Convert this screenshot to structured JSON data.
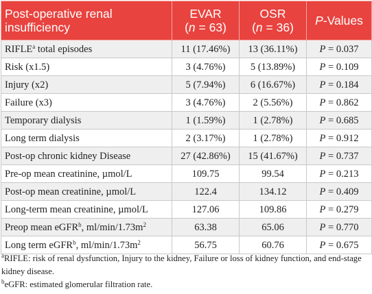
{
  "header": {
    "label": "Post-operative renal insufficiency",
    "evar_name": "EVAR",
    "evar_n_prefix": "(",
    "evar_n_var": "n",
    "evar_n_value": " = 63)",
    "osr_name": "OSR",
    "osr_n_prefix": "(",
    "osr_n_var": "n",
    "osr_n_value": " = 36)",
    "p_letter": "P",
    "p_suffix": "-Values"
  },
  "rows": [
    {
      "label": "RIFLE",
      "label_sup": "a",
      "label_rest": " total episodes",
      "evar": "11 (17.46%)",
      "osr": "13 (36.11%)",
      "p_letter": "P",
      "p_value": " = 0.037"
    },
    {
      "label": "Risk (x1.5)",
      "evar": "3 (4.76%)",
      "osr": "5 (13.89%)",
      "p_letter": "P",
      "p_value": " = 0.109"
    },
    {
      "label": "Injury (x2)",
      "evar": "5 (7.94%)",
      "osr": "6 (16.67%)",
      "p_letter": "P",
      "p_value": " = 0.184"
    },
    {
      "label": "Failure (x3)",
      "evar": "3 (4.76%)",
      "osr": "2 (5.56%)",
      "p_letter": "P",
      "p_value": " = 0.862"
    },
    {
      "label": "Temporary dialysis",
      "evar": "1 (1.59%)",
      "osr": "1 (2.78%)",
      "p_letter": "P",
      "p_value": " = 0.685"
    },
    {
      "label": "Long term dialysis",
      "evar": "2 (3.17%)",
      "osr": "1 (2.78%)",
      "p_letter": "P",
      "p_value": " = 0.912"
    },
    {
      "label": "Post-op chronic kidney Disease",
      "evar": "27 (42.86%)",
      "osr": "15 (41.67%)",
      "p_letter": "P",
      "p_value": " = 0.737"
    },
    {
      "label": "Pre-op mean creatinine, µmol/L",
      "evar": "109.75",
      "osr": "99.54",
      "p_letter": "P",
      "p_value": " = 0.213"
    },
    {
      "label": "Post-op mean creatinine, µmol/L",
      "evar": "122.4",
      "osr": "134.12",
      "p_letter": "P",
      "p_value": " = 0.409"
    },
    {
      "label": "Long-term mean creatinine, µmol/L",
      "evar": "127.06",
      "osr": "109.86",
      "p_letter": "P",
      "p_value": " = 0.279"
    },
    {
      "label": "Preop mean eGFR",
      "label_sup": "b",
      "label_rest": ", ml/min/1.73m",
      "label_sup2": "2",
      "evar": "63.38",
      "osr": "65.06",
      "p_letter": "P",
      "p_value": " = 0.770"
    },
    {
      "label": "Long term eGFR",
      "label_sup": "b",
      "label_rest": ", ml/min/1.73m",
      "label_sup2": "2",
      "evar": "56.75",
      "osr": "60.76",
      "p_letter": "P",
      "p_value": " = 0.675"
    }
  ],
  "footnotes": [
    {
      "marker": "a",
      "text": "RIFLE: risk of renal dysfunction, Injury to the kidney, Failure or loss of kidney function, and end-stage kidney disease."
    },
    {
      "marker": "b",
      "text": "eGFR: estimated glomerular filtration rate."
    }
  ],
  "colors": {
    "header_bg": "#e8433f",
    "header_text": "#ffffff",
    "shaded_row": "#efefef",
    "border": "#c8c8c8"
  }
}
